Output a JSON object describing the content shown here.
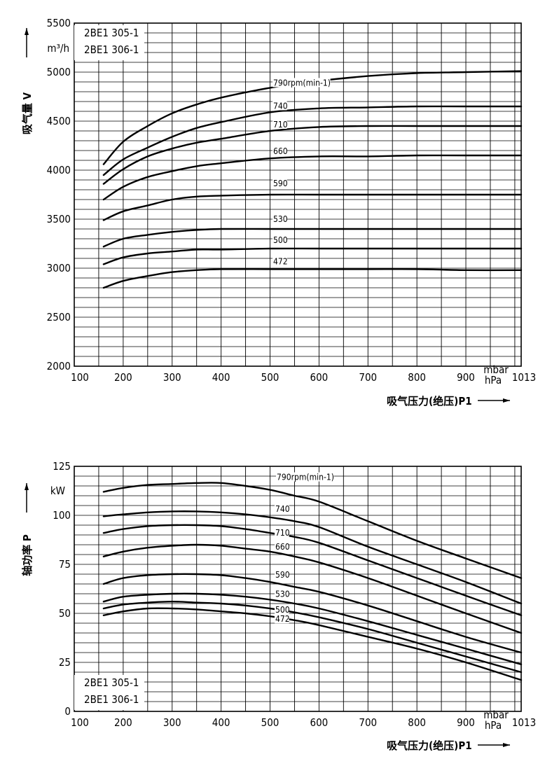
{
  "chart_data": [
    {
      "type": "line",
      "ylabel": "吸气量 V",
      "yunit": "m³/h",
      "xlabel": "吸气压力(绝压)P1",
      "xunit": "mbar\nhPa",
      "models": [
        "2BE1 305-1",
        "2BE1 306-1"
      ],
      "xlim": [
        100,
        1013
      ],
      "ylim": [
        2000,
        5500
      ],
      "xticks": [
        100,
        200,
        300,
        400,
        500,
        600,
        700,
        800,
        900,
        1013
      ],
      "yticks": [
        2000,
        2500,
        3000,
        3500,
        4000,
        4500,
        5000,
        5500
      ],
      "grid": true,
      "series": [
        {
          "name": "790rpm(min-1)",
          "x": [
            160,
            200,
            250,
            300,
            350,
            400,
            500,
            600,
            700,
            800,
            900,
            1013
          ],
          "values": [
            4060,
            4290,
            4450,
            4580,
            4670,
            4740,
            4840,
            4910,
            4960,
            4990,
            5000,
            5010
          ]
        },
        {
          "name": "740",
          "x": [
            160,
            200,
            250,
            300,
            350,
            400,
            500,
            600,
            700,
            800,
            900,
            1013
          ],
          "values": [
            3950,
            4110,
            4230,
            4340,
            4430,
            4490,
            4590,
            4630,
            4640,
            4650,
            4650,
            4650
          ]
        },
        {
          "name": "710",
          "x": [
            160,
            200,
            250,
            300,
            350,
            400,
            500,
            600,
            700,
            800,
            900,
            1013
          ],
          "values": [
            3860,
            4010,
            4140,
            4220,
            4280,
            4320,
            4400,
            4440,
            4450,
            4450,
            4450,
            4450
          ]
        },
        {
          "name": "660",
          "x": [
            160,
            200,
            250,
            300,
            350,
            400,
            500,
            600,
            700,
            800,
            900,
            1013
          ],
          "values": [
            3700,
            3830,
            3930,
            3990,
            4040,
            4070,
            4120,
            4140,
            4140,
            4150,
            4150,
            4150
          ]
        },
        {
          "name": "590",
          "x": [
            160,
            200,
            250,
            300,
            350,
            400,
            500,
            600,
            700,
            800,
            900,
            1013
          ],
          "values": [
            3490,
            3580,
            3640,
            3700,
            3730,
            3740,
            3750,
            3750,
            3750,
            3750,
            3750,
            3750
          ]
        },
        {
          "name": "530",
          "x": [
            160,
            200,
            250,
            300,
            350,
            400,
            500,
            600,
            700,
            800,
            900,
            1013
          ],
          "values": [
            3220,
            3300,
            3340,
            3370,
            3390,
            3400,
            3400,
            3400,
            3400,
            3400,
            3400,
            3400
          ]
        },
        {
          "name": "500",
          "x": [
            160,
            200,
            250,
            300,
            350,
            400,
            500,
            600,
            700,
            800,
            900,
            1013
          ],
          "values": [
            3040,
            3110,
            3150,
            3170,
            3190,
            3190,
            3200,
            3200,
            3200,
            3200,
            3200,
            3200
          ]
        },
        {
          "name": "472",
          "x": [
            160,
            200,
            250,
            300,
            350,
            400,
            500,
            600,
            700,
            800,
            900,
            1013
          ],
          "values": [
            2800,
            2870,
            2920,
            2960,
            2980,
            2990,
            2990,
            2990,
            2990,
            2990,
            2980,
            2980
          ]
        }
      ]
    },
    {
      "type": "line",
      "ylabel": "轴功率 P",
      "yunit": "kW",
      "xlabel": "吸气压力(绝压)P1",
      "xunit": "mbar\nhPa",
      "models": [
        "2BE1 305-1",
        "2BE1 306-1"
      ],
      "xlim": [
        100,
        1013
      ],
      "ylim": [
        0,
        125
      ],
      "xticks": [
        100,
        200,
        300,
        400,
        500,
        600,
        700,
        800,
        900,
        1013
      ],
      "yticks": [
        0,
        25,
        50,
        75,
        100,
        125
      ],
      "grid": true,
      "series": [
        {
          "name": "790rpm(min-1)",
          "x": [
            160,
            200,
            250,
            300,
            350,
            400,
            450,
            500,
            550,
            600,
            700,
            800,
            900,
            1013
          ],
          "values": [
            112,
            114,
            115.5,
            116,
            116.5,
            116.5,
            115,
            113,
            110,
            107,
            97,
            87,
            78,
            68
          ]
        },
        {
          "name": "740",
          "x": [
            160,
            200,
            250,
            300,
            350,
            400,
            450,
            500,
            550,
            600,
            700,
            800,
            900,
            1013
          ],
          "values": [
            99.5,
            100.5,
            101.5,
            102,
            102,
            101.5,
            100.5,
            99,
            97,
            94,
            84,
            75,
            66,
            55
          ]
        },
        {
          "name": "710",
          "x": [
            160,
            200,
            250,
            300,
            350,
            400,
            450,
            500,
            550,
            600,
            700,
            800,
            900,
            1013
          ],
          "values": [
            91,
            93,
            94.5,
            95,
            95,
            94.5,
            93,
            91,
            89,
            86,
            77,
            68,
            59,
            49
          ]
        },
        {
          "name": "660",
          "x": [
            160,
            200,
            250,
            300,
            350,
            400,
            450,
            500,
            550,
            600,
            700,
            800,
            900,
            1013
          ],
          "values": [
            79,
            81.5,
            83.5,
            84.5,
            85,
            84.5,
            83,
            81.5,
            79,
            76,
            68,
            59,
            50,
            40
          ]
        },
        {
          "name": "590",
          "x": [
            160,
            200,
            250,
            300,
            350,
            400,
            450,
            500,
            550,
            600,
            700,
            800,
            900,
            1013
          ],
          "values": [
            65,
            68,
            69.5,
            70,
            70,
            69.5,
            68,
            66,
            63.5,
            61,
            54,
            46,
            38,
            30
          ]
        },
        {
          "name": "530",
          "x": [
            160,
            200,
            250,
            300,
            350,
            400,
            450,
            500,
            550,
            600,
            700,
            800,
            900,
            1013
          ],
          "values": [
            56,
            58.5,
            59.5,
            60,
            60,
            59.5,
            58.5,
            57,
            55,
            52.5,
            46,
            39,
            32,
            24
          ]
        },
        {
          "name": "500",
          "x": [
            160,
            200,
            250,
            300,
            350,
            400,
            450,
            500,
            550,
            600,
            700,
            800,
            900,
            1013
          ],
          "values": [
            52.5,
            54.5,
            55.5,
            56,
            55.5,
            55,
            54,
            52.5,
            50.5,
            48,
            42,
            35,
            28,
            20
          ]
        },
        {
          "name": "472",
          "x": [
            160,
            200,
            250,
            300,
            350,
            400,
            450,
            500,
            550,
            600,
            700,
            800,
            900,
            1013
          ],
          "values": [
            49,
            51,
            52.5,
            52.5,
            52,
            51,
            50,
            48.5,
            46.5,
            44,
            38,
            32,
            25,
            16
          ]
        }
      ]
    }
  ]
}
